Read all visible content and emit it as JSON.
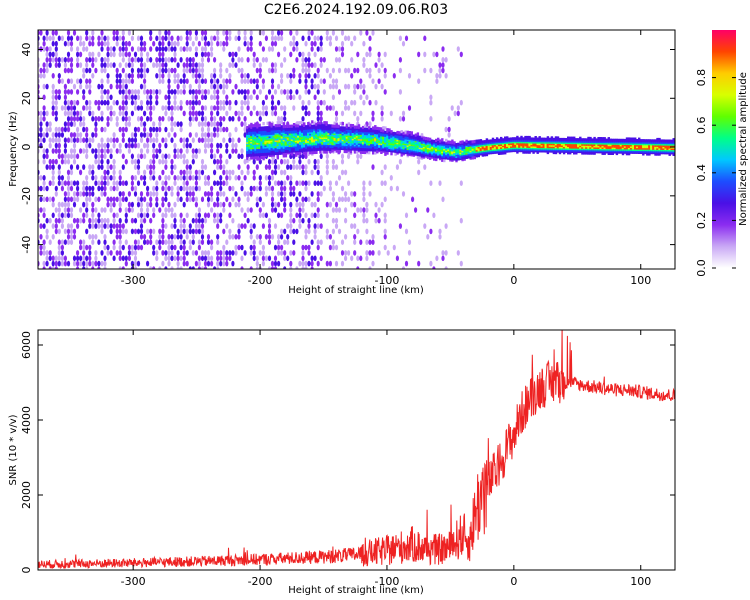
{
  "title": "C2E6.2024.192.09.06.R03",
  "colors": {
    "snr_line": "#ee2222",
    "colormap": [
      "#ffffff",
      "#c9a8f5",
      "#8b2cf0",
      "#4a10e6",
      "#1d4dff",
      "#00c8ff",
      "#00ff88",
      "#60ff00",
      "#d8ff00",
      "#ffcc00",
      "#ff4400",
      "#ff0066"
    ]
  },
  "chart_data": [
    {
      "type": "heatmap",
      "title": "",
      "xlabel": "Height of straight line (km)",
      "ylabel": "Frequency (Hz)",
      "xlim": [
        -375,
        127
      ],
      "ylim": [
        -50,
        48
      ],
      "xticks": [
        -300,
        -200,
        -100,
        0,
        100
      ],
      "xtick_labels": [
        "-300",
        "-200",
        "-100",
        "0",
        "100"
      ],
      "yticks": [
        -40,
        -20,
        0,
        20,
        40
      ],
      "ytick_labels": [
        "-40",
        "-20",
        "0",
        "20",
        "40"
      ],
      "colorbar": {
        "label": "Normalized spectral amplitude",
        "range": [
          0,
          1
        ],
        "ticks": [
          0,
          0.2,
          0.4,
          0.6,
          0.8
        ],
        "tick_labels": [
          "0.0",
          "0.2",
          "0.4",
          "0.6",
          "0.8"
        ]
      },
      "features": {
        "signal_center_hz": [
          [
            -210,
            2
          ],
          [
            -150,
            4
          ],
          [
            -110,
            3
          ],
          [
            -80,
            1
          ],
          [
            -60,
            -1
          ],
          [
            -45,
            -2
          ],
          [
            -35,
            -1
          ],
          [
            -20,
            0
          ],
          [
            0,
            1
          ],
          [
            127,
            0
          ]
        ],
        "signal_band_start_km": -210,
        "signal_band_strong_from_km": -30,
        "noise_fades_by_km": -60,
        "grid": false
      }
    },
    {
      "type": "line",
      "title": "",
      "xlabel": "Height of straight line (km)",
      "ylabel": "SNR (10 * v/v)",
      "xlim": [
        -375,
        127
      ],
      "ylim": [
        0,
        6400
      ],
      "xticks": [
        -300,
        -200,
        -100,
        0,
        100
      ],
      "xtick_labels": [
        "-300",
        "-200",
        "-100",
        "0",
        "100"
      ],
      "yticks": [
        0,
        2000,
        4000,
        6000
      ],
      "ytick_labels": [
        "0",
        "2000",
        "4000",
        "6000"
      ],
      "grid": false,
      "series": [
        {
          "x": [
            -375,
            -350,
            -300,
            -250,
            -200,
            -150,
            -120,
            -100,
            -80,
            -70,
            -60,
            -50,
            -45,
            -40,
            -35,
            -30,
            -25,
            -20,
            -15,
            -10,
            -5,
            0,
            5,
            10,
            15,
            20,
            25,
            30,
            35,
            40,
            45,
            50,
            60,
            70,
            80,
            90,
            100,
            110,
            127
          ],
          "y": [
            150,
            160,
            190,
            230,
            280,
            350,
            420,
            520,
            680,
            560,
            540,
            600,
            800,
            950,
            700,
            1600,
            2000,
            2300,
            2600,
            2900,
            3300,
            3600,
            4100,
            4400,
            4650,
            4850,
            4950,
            5000,
            5050,
            5000,
            5000,
            4950,
            4900,
            4850,
            4800,
            4800,
            4750,
            4700,
            4650
          ]
        }
      ]
    }
  ]
}
